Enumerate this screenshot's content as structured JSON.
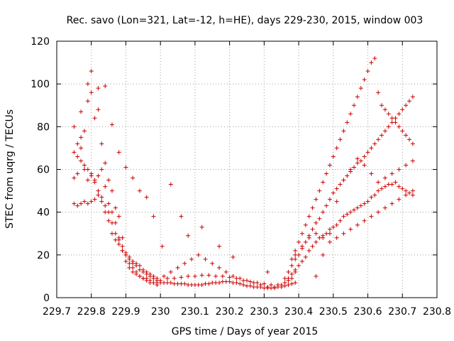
{
  "chart_data": {
    "type": "scatter",
    "title": "Rec. savo (Lon=321, Lat=-12, h=HE), days 229-230, 2015, window 003",
    "xlabel": "GPS time / Days of year 2015",
    "ylabel": "STEC from uqrg / TECUs",
    "xlim": [
      229.7,
      230.8
    ],
    "ylim": [
      0,
      120
    ],
    "xticks": [
      "229.7",
      "229.8",
      "229.9",
      "230",
      "230.1",
      "230.2",
      "230.3",
      "230.4",
      "230.5",
      "230.6",
      "230.7",
      "230.8"
    ],
    "xtick_values": [
      229.7,
      229.8,
      229.9,
      230.0,
      230.1,
      230.2,
      230.3,
      230.4,
      230.5,
      230.6,
      230.7,
      230.8
    ],
    "yticks": [
      "0",
      "20",
      "40",
      "60",
      "80",
      "100",
      "120"
    ],
    "ytick_values": [
      0,
      20,
      40,
      60,
      80,
      100,
      120
    ],
    "grid": true,
    "marker": "+",
    "color": "#cc0000",
    "x": [
      229.75,
      229.76,
      229.77,
      229.78,
      229.79,
      229.8,
      229.81,
      229.82,
      229.83,
      229.84,
      229.85,
      229.86,
      229.87,
      229.88,
      229.89,
      229.9,
      229.91,
      229.92,
      229.93,
      229.94,
      229.95,
      229.96,
      229.97,
      229.98,
      229.99,
      229.75,
      229.76,
      229.77,
      229.78,
      229.79,
      229.8,
      229.81,
      229.82,
      229.83,
      229.84,
      229.85,
      229.86,
      229.87,
      229.88,
      229.89,
      229.9,
      229.91,
      229.92,
      229.93,
      229.94,
      229.95,
      229.96,
      229.97,
      229.98,
      229.99,
      229.75,
      229.76,
      229.77,
      229.78,
      229.79,
      229.8,
      229.81,
      229.82,
      229.83,
      229.84,
      229.85,
      229.86,
      229.87,
      229.88,
      229.89,
      229.9,
      229.91,
      229.92,
      229.93,
      229.94,
      229.95,
      229.96,
      229.97,
      229.98,
      229.99,
      229.75,
      229.76,
      229.77,
      229.78,
      229.79,
      229.8,
      229.81,
      229.82,
      229.83,
      229.84,
      229.85,
      229.86,
      229.87,
      229.88,
      229.89,
      229.9,
      229.91,
      229.92,
      229.93,
      229.94,
      229.95,
      229.96,
      229.97,
      229.98,
      229.99,
      229.77,
      229.79,
      229.8,
      229.82,
      229.84,
      229.86,
      229.88,
      229.9,
      229.92,
      229.94,
      229.96,
      229.98,
      230.0,
      230.01,
      230.02,
      230.03,
      230.04,
      230.05,
      230.06,
      230.07,
      230.08,
      230.09,
      230.1,
      230.11,
      230.12,
      230.13,
      230.14,
      230.15,
      230.16,
      230.17,
      230.18,
      230.19,
      230.2,
      230.21,
      230.22,
      230.23,
      230.24,
      230.25,
      230.26,
      230.27,
      230.28,
      230.29,
      230.3,
      230.31,
      230.32,
      230.33,
      230.34,
      230.35,
      230.36,
      230.37,
      230.38,
      230.39,
      230.0,
      230.02,
      230.04,
      230.06,
      230.08,
      230.1,
      230.12,
      230.14,
      230.16,
      230.18,
      230.2,
      230.22,
      230.24,
      230.26,
      230.28,
      230.3,
      230.32,
      230.34,
      230.36,
      230.38,
      230.01,
      230.03,
      230.05,
      230.07,
      230.09,
      230.11,
      230.13,
      230.15,
      230.17,
      230.19,
      230.21,
      230.23,
      230.25,
      230.27,
      230.29,
      230.31,
      230.33,
      230.35,
      230.37,
      230.39,
      230.005,
      230.03,
      230.06,
      230.08,
      230.12,
      230.17,
      230.21,
      230.31,
      230.36,
      230.37,
      230.38,
      230.39,
      230.4,
      230.41,
      230.42,
      230.43,
      230.44,
      230.45,
      230.46,
      230.47,
      230.48,
      230.49,
      230.5,
      230.51,
      230.52,
      230.53,
      230.54,
      230.55,
      230.56,
      230.57,
      230.58,
      230.59,
      230.6,
      230.61,
      230.62,
      230.63,
      230.64,
      230.65,
      230.66,
      230.67,
      230.68,
      230.69,
      230.7,
      230.71,
      230.72,
      230.73,
      230.37,
      230.38,
      230.39,
      230.4,
      230.41,
      230.42,
      230.43,
      230.44,
      230.45,
      230.46,
      230.47,
      230.48,
      230.49,
      230.5,
      230.51,
      230.52,
      230.53,
      230.54,
      230.55,
      230.56,
      230.57,
      230.58,
      230.59,
      230.6,
      230.61,
      230.62,
      230.63,
      230.64,
      230.65,
      230.66,
      230.67,
      230.68,
      230.69,
      230.7,
      230.71,
      230.72,
      230.73,
      230.38,
      230.39,
      230.4,
      230.41,
      230.42,
      230.43,
      230.44,
      230.45,
      230.46,
      230.47,
      230.48,
      230.49,
      230.5,
      230.51,
      230.52,
      230.53,
      230.54,
      230.55,
      230.56,
      230.57,
      230.58,
      230.59,
      230.6,
      230.61,
      230.62,
      230.63,
      230.64,
      230.65,
      230.66,
      230.67,
      230.68,
      230.69,
      230.7,
      230.71,
      230.72,
      230.73,
      230.39,
      230.41,
      230.43,
      230.45,
      230.47,
      230.49,
      230.51,
      230.53,
      230.55,
      230.57,
      230.59,
      230.61,
      230.63,
      230.65,
      230.67,
      230.69,
      230.71,
      230.73,
      230.45,
      230.47,
      230.49,
      230.51,
      230.53,
      230.55,
      230.57,
      230.59,
      230.61,
      230.63,
      230.65,
      230.67,
      230.69,
      230.71,
      230.73
    ],
    "y": [
      80,
      72,
      70,
      60,
      55,
      58,
      54,
      48,
      45,
      40,
      36,
      30,
      27,
      25,
      22,
      20,
      18,
      16,
      15,
      13,
      12,
      11,
      10,
      9,
      8,
      68,
      66,
      64,
      62,
      60,
      57,
      55,
      50,
      47,
      43,
      40,
      35,
      30,
      27,
      24,
      21,
      19,
      17,
      16,
      15,
      13,
      12,
      11,
      10,
      9,
      56,
      58,
      75,
      78,
      92,
      96,
      84,
      88,
      72,
      63,
      55,
      50,
      42,
      38,
      28,
      20,
      16,
      14,
      12,
      10,
      9,
      8,
      7,
      7,
      6,
      44,
      43,
      44,
      45,
      44,
      45,
      46,
      57,
      60,
      52,
      44,
      40,
      35,
      28,
      22,
      17,
      14,
      12,
      11,
      10,
      9,
      9,
      8,
      7,
      7,
      87,
      100,
      106,
      98,
      99,
      81,
      68,
      61,
      56,
      50,
      47,
      38,
      7,
      7,
      7,
      7,
      6.5,
      6.5,
      6.5,
      6.5,
      6,
      6,
      6,
      6,
      6,
      6.5,
      6.5,
      7,
      7,
      7,
      7.5,
      7.5,
      7.5,
      7,
      7,
      6.5,
      6,
      5.5,
      5.5,
      5,
      5,
      5,
      4.5,
      4.5,
      4.5,
      4.5,
      5,
      5,
      5.5,
      6,
      6.5,
      7,
      8,
      9,
      9,
      9.5,
      10,
      10,
      10.5,
      10.5,
      10,
      10,
      9.5,
      9,
      8,
      7.5,
      7,
      6.5,
      6,
      6,
      7,
      9,
      10,
      12,
      14,
      16,
      18,
      20,
      18,
      16,
      14,
      12,
      10,
      9,
      8,
      7,
      6,
      5,
      5,
      6,
      8,
      12,
      24,
      53,
      38,
      29,
      33,
      24,
      19,
      12,
      9,
      9,
      11,
      13,
      15,
      17,
      19,
      22,
      24,
      26,
      28,
      29,
      30,
      32,
      33,
      34,
      36,
      38,
      39,
      40,
      41,
      42,
      43,
      44,
      45,
      47,
      48,
      50,
      51,
      52,
      53,
      53,
      54,
      52,
      51,
      50,
      49,
      48,
      12,
      15,
      18,
      20,
      23,
      26,
      29,
      32,
      35,
      37,
      40,
      43,
      46,
      49,
      51,
      53,
      55,
      57,
      59,
      61,
      63,
      64,
      66,
      68,
      70,
      72,
      74,
      76,
      78,
      80,
      82,
      84,
      86,
      88,
      90,
      92,
      94,
      18,
      22,
      26,
      30,
      34,
      38,
      42,
      46,
      50,
      54,
      58,
      62,
      66,
      70,
      74,
      78,
      82,
      86,
      90,
      94,
      98,
      102,
      106,
      110,
      112,
      96,
      90,
      88,
      86,
      84,
      82,
      80,
      78,
      76,
      74,
      72,
      20,
      24,
      28,
      30,
      28,
      26,
      28,
      30,
      32,
      34,
      36,
      38,
      40,
      42,
      44,
      46,
      48,
      50,
      10,
      20,
      30,
      45,
      55,
      60,
      65,
      62,
      58,
      54,
      56,
      58,
      60,
      62,
      64
    ],
    "point_count_note": ""
  }
}
